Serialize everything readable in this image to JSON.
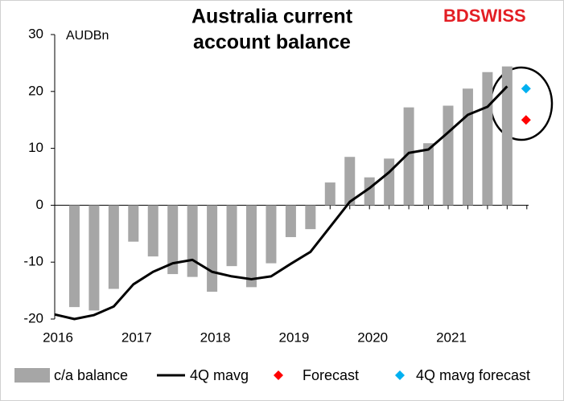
{
  "chart_data": {
    "type": "combo",
    "title": [
      "Australia current",
      "account balance"
    ],
    "logo": "BDSWISS",
    "y_label": "AUDBn",
    "categories": [
      "2016",
      null,
      null,
      null,
      "2017",
      null,
      null,
      null,
      "2018",
      null,
      null,
      null,
      "2019",
      null,
      null,
      null,
      "2020",
      null,
      null,
      null,
      "2021",
      null,
      null,
      null,
      null
    ],
    "ylim": [
      -20,
      30
    ],
    "yticks": [
      -20,
      -10,
      0,
      10,
      20,
      30
    ],
    "series": [
      {
        "name": "c/a balance",
        "type": "bar",
        "color": "#a6a6a6",
        "values": [
          null,
          -17.9,
          -18.5,
          -14.7,
          -6.4,
          -9.0,
          -12.1,
          -12.6,
          -15.2,
          -10.7,
          -14.4,
          -10.2,
          -5.6,
          -4.2,
          4.0,
          8.5,
          4.9,
          8.2,
          17.2,
          10.9,
          17.5,
          20.5,
          23.4,
          24.4,
          null
        ]
      },
      {
        "name": "4Q mavg",
        "type": "line",
        "color": "#000000",
        "values": [
          -19.2,
          -20.0,
          -19.3,
          -17.8,
          -13.9,
          -11.7,
          -10.2,
          -9.6,
          -11.7,
          -12.5,
          -13.0,
          -12.5,
          -10.3,
          -8.2,
          -3.8,
          0.6,
          3.0,
          5.8,
          9.2,
          9.8,
          12.8,
          15.9,
          17.3,
          20.9,
          null
        ]
      },
      {
        "name": "Forecast",
        "type": "scatter",
        "color": "#ff0000",
        "values": [
          null,
          null,
          null,
          null,
          null,
          null,
          null,
          null,
          null,
          null,
          null,
          null,
          null,
          null,
          null,
          null,
          null,
          null,
          null,
          null,
          null,
          null,
          null,
          null,
          15.0
        ]
      },
      {
        "name": "4Q mavg forecast",
        "type": "scatter",
        "color": "#00b0f0",
        "values": [
          null,
          null,
          null,
          null,
          null,
          null,
          null,
          null,
          null,
          null,
          null,
          null,
          null,
          null,
          null,
          null,
          null,
          null,
          null,
          null,
          null,
          null,
          null,
          null,
          20.5
        ]
      }
    ]
  }
}
